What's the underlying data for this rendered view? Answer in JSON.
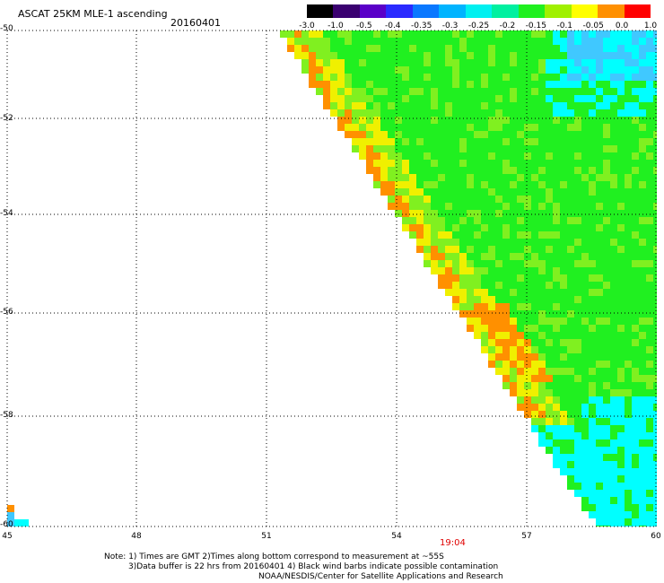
{
  "header": {
    "title": "ASCAT 25KM MLE-1 ascending",
    "date": "20160401"
  },
  "colorbar": {
    "labels": [
      "-3.0",
      "-1.0",
      "-0.5",
      "-0.4",
      "-0.35",
      "-0.3",
      "-0.25",
      "-0.2",
      "-0.15",
      "-0.1",
      "-0.05",
      "0.0",
      "1.0"
    ],
    "colors": [
      "#000000",
      "#3a0070",
      "#5a00c8",
      "#2a2aff",
      "#0a78ff",
      "#00b4ff",
      "#00f0f0",
      "#00f0a0",
      "#20f020",
      "#a0f000",
      "#ffff00",
      "#ff9000",
      "#ff0000"
    ]
  },
  "axes": {
    "lat_labels": [
      "-50",
      "-52",
      "-54",
      "-56",
      "-58",
      "-60"
    ],
    "lon_labels": [
      "45",
      "48",
      "51",
      "54",
      "57",
      "60"
    ]
  },
  "time_label": "19:04",
  "notes": {
    "line1": "Note: 1) Times are GMT 2)Times along bottom correspond to measurement at ~55S",
    "line2": "3)Data buffer is 22 hrs from 20160401 4) Black wind barbs indicate possible contamination",
    "line3": "NOAA/NESDIS/Center for Satellite Applications and Research"
  },
  "map_colors": {
    "cyan": "#00ffff",
    "sky": "#40c8ff",
    "green": "#20f020",
    "lime": "#80f020",
    "yellow": "#f0f000",
    "orange": "#ff9000",
    "red_time": "#e00000"
  }
}
